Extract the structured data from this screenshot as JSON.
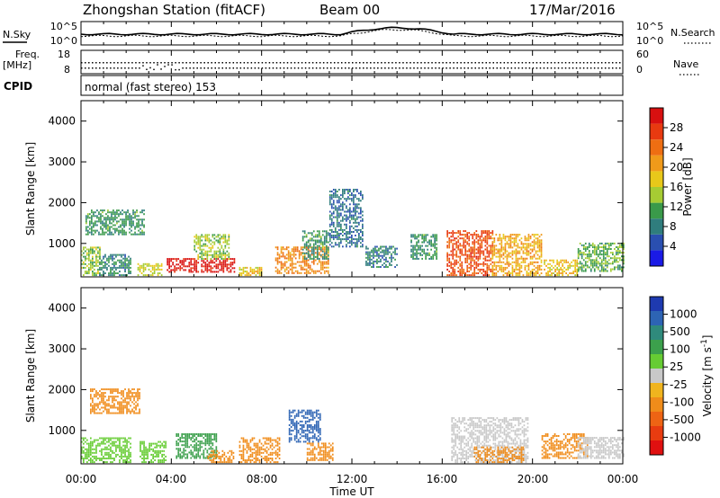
{
  "header": {
    "station": "Zhongshan Station (fitACF)",
    "beam": "Beam 00",
    "date": "17/Mar/2016"
  },
  "noise_panel": {
    "left_label": "N.Sky",
    "left_ticks": [
      "10^5",
      "10^0"
    ],
    "right_ticks": [
      "10^5",
      "10^0"
    ],
    "right_label": "N.Search"
  },
  "freq_panel": {
    "left_label_line1": "Freq.",
    "left_label_line2": "[MHz]",
    "left_ticks": [
      "18",
      "8"
    ],
    "right_ticks": [
      "60",
      "0"
    ],
    "right_label": "Nave"
  },
  "cpid_panel": {
    "label": "CPID",
    "text": "normal (fast stereo) 153"
  },
  "range_axis": {
    "label": "Slant Range [km]",
    "ticks": [
      "1000",
      "2000",
      "3000",
      "4000"
    ]
  },
  "time_axis": {
    "label": "Time UT",
    "ticks": [
      "00:00",
      "04:00",
      "08:00",
      "12:00",
      "16:00",
      "20:00",
      "00:00"
    ]
  },
  "power_scale": {
    "label": "Power [dB]",
    "ticks": [
      "4",
      "8",
      "12",
      "16",
      "20",
      "24",
      "28"
    ],
    "colors": [
      "#1a1ae6",
      "#2a4fb0",
      "#2f7d7d",
      "#3a9a4a",
      "#a6cc33",
      "#e8c81a",
      "#f09a1a",
      "#ee6e12",
      "#e83a10",
      "#d81010"
    ]
  },
  "velocity_scale": {
    "label_main": "Velocity [m s",
    "label_exp": "-1",
    "label_end": "]",
    "ticks": [
      "1000",
      "500",
      "100",
      "25",
      "-25",
      "-100",
      "-500",
      "-1000"
    ],
    "colors": [
      "#1e3ab0",
      "#2d64b4",
      "#2f8a7c",
      "#3ca04c",
      "#66cc33",
      "#c8c8c8",
      "#f0b41e",
      "#f08c1a",
      "#ee6414",
      "#e83c10",
      "#e01010"
    ]
  },
  "chart_data": [
    {
      "type": "line",
      "title": "N.Sky / N.Search",
      "x_range_hours": [
        0,
        24
      ],
      "y_scale": "log",
      "ylim": [
        "10^0",
        "10^5"
      ]
    },
    {
      "type": "scatter",
      "title": "Freq. / Nave",
      "x_range_hours": [
        0,
        24
      ],
      "ylim_freq_mhz": [
        8,
        18
      ],
      "ylim_nave": [
        0,
        60
      ]
    },
    {
      "type": "heatmap",
      "title": "Power",
      "units": "dB",
      "x_range_hours": [
        0,
        24
      ],
      "ylim_km": [
        180,
        4500
      ],
      "colorbar_range": [
        0,
        32
      ],
      "blocks": [
        {
          "t0": 0.0,
          "t1": 0.8,
          "r0": 200,
          "r1": 900,
          "v": 14
        },
        {
          "t0": 0.2,
          "t1": 2.8,
          "r0": 1200,
          "r1": 1800,
          "v": 10
        },
        {
          "t0": 0.8,
          "t1": 2.2,
          "r0": 200,
          "r1": 700,
          "v": 9
        },
        {
          "t0": 2.5,
          "t1": 3.6,
          "r0": 200,
          "r1": 500,
          "v": 16
        },
        {
          "t0": 3.8,
          "t1": 6.8,
          "r0": 280,
          "r1": 620,
          "v": 30
        },
        {
          "t0": 5.0,
          "t1": 6.6,
          "r0": 600,
          "r1": 1200,
          "v": 14
        },
        {
          "t0": 7.0,
          "t1": 8.0,
          "r0": 200,
          "r1": 400,
          "v": 18
        },
        {
          "t0": 8.6,
          "t1": 11.0,
          "r0": 250,
          "r1": 900,
          "v": 22
        },
        {
          "t0": 9.8,
          "t1": 11.0,
          "r0": 600,
          "r1": 1300,
          "v": 10
        },
        {
          "t0": 11.0,
          "t1": 12.5,
          "r0": 900,
          "r1": 2300,
          "v": 7
        },
        {
          "t0": 12.6,
          "t1": 14.0,
          "r0": 400,
          "r1": 900,
          "v": 8
        },
        {
          "t0": 14.6,
          "t1": 15.8,
          "r0": 600,
          "r1": 1200,
          "v": 10
        },
        {
          "t0": 16.2,
          "t1": 18.2,
          "r0": 200,
          "r1": 1300,
          "v": 26
        },
        {
          "t0": 18.2,
          "t1": 20.4,
          "r0": 200,
          "r1": 1200,
          "v": 20
        },
        {
          "t0": 20.5,
          "t1": 22.0,
          "r0": 200,
          "r1": 600,
          "v": 18
        },
        {
          "t0": 22.0,
          "t1": 24.0,
          "r0": 300,
          "r1": 1000,
          "v": 12
        }
      ]
    },
    {
      "type": "heatmap",
      "title": "Velocity",
      "units": "m s-1",
      "x_range_hours": [
        0,
        24
      ],
      "ylim_km": [
        180,
        4500
      ],
      "colorbar_ticks": [
        1000,
        500,
        100,
        25,
        -25,
        -100,
        -500,
        -1000
      ],
      "blocks": [
        {
          "t0": 0.0,
          "t1": 2.2,
          "r0": 200,
          "r1": 800,
          "v": 50
        },
        {
          "t0": 0.4,
          "t1": 2.6,
          "r0": 1400,
          "r1": 2000,
          "v": -300
        },
        {
          "t0": 2.6,
          "t1": 3.8,
          "r0": 200,
          "r1": 700,
          "v": 30
        },
        {
          "t0": 4.2,
          "t1": 6.0,
          "r0": 300,
          "r1": 900,
          "v": 150
        },
        {
          "t0": 5.6,
          "t1": 6.8,
          "r0": 200,
          "r1": 500,
          "v": -300
        },
        {
          "t0": 7.0,
          "t1": 8.8,
          "r0": 200,
          "r1": 800,
          "v": -400
        },
        {
          "t0": 9.2,
          "t1": 10.6,
          "r0": 700,
          "r1": 1500,
          "v": 600
        },
        {
          "t0": 10.0,
          "t1": 11.2,
          "r0": 250,
          "r1": 700,
          "v": -300
        },
        {
          "t0": 16.4,
          "t1": 19.8,
          "r0": 200,
          "r1": 1300,
          "v": 0
        },
        {
          "t0": 17.4,
          "t1": 19.6,
          "r0": 200,
          "r1": 600,
          "v": -300
        },
        {
          "t0": 20.4,
          "t1": 22.4,
          "r0": 300,
          "r1": 900,
          "v": -150
        },
        {
          "t0": 22.0,
          "t1": 24.0,
          "r0": 300,
          "r1": 800,
          "v": 0
        }
      ]
    }
  ]
}
